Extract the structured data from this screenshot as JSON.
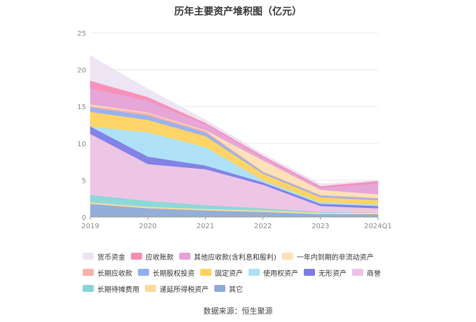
{
  "title": "历年主要资产堆积图（亿元）",
  "source": "数据来源：恒生聚源",
  "chart_data": {
    "type": "area",
    "stacked": true,
    "title": "历年主要资产堆积图（亿元）",
    "xlabel": "",
    "ylabel": "",
    "categories": [
      "2019",
      "2020",
      "2021",
      "2022",
      "2023",
      "2024Q1"
    ],
    "ylim": [
      0,
      25
    ],
    "yticks": [
      0,
      5,
      10,
      15,
      20,
      25
    ],
    "grid": true,
    "legend_position": "bottom",
    "series": [
      {
        "name": "其它",
        "color": "#8eaad8",
        "values": [
          1.8,
          1.2,
          0.9,
          0.7,
          0.4,
          0.4
        ]
      },
      {
        "name": "递延所得税资产",
        "color": "#fcd999",
        "values": [
          0.2,
          0.2,
          0.2,
          0.2,
          0.2,
          0.2
        ]
      },
      {
        "name": "长期待摊费用",
        "color": "#86d6d8",
        "values": [
          1.0,
          0.8,
          0.5,
          0.3,
          0.1,
          0.0
        ]
      },
      {
        "name": "商誉",
        "color": "#ecc3e4",
        "values": [
          8.3,
          5.0,
          4.9,
          3.2,
          0.8,
          0.6
        ]
      },
      {
        "name": "无形资产",
        "color": "#7b7be6",
        "values": [
          1.0,
          1.0,
          0.5,
          0.3,
          0.3,
          0.3
        ]
      },
      {
        "name": "使用权资产",
        "color": "#aadff8",
        "values": [
          0.0,
          3.3,
          2.5,
          0.3,
          0.2,
          0.2
        ]
      },
      {
        "name": "固定资产",
        "color": "#fdd25f",
        "values": [
          2.0,
          1.7,
          1.5,
          0.9,
          0.7,
          0.6
        ]
      },
      {
        "name": "长期股权投资",
        "color": "#93aef0",
        "values": [
          0.6,
          0.6,
          0.5,
          0.2,
          0.2,
          0.2
        ]
      },
      {
        "name": "长期应收款",
        "color": "#f9b1a6",
        "values": [
          0.2,
          0.3,
          0.2,
          0.1,
          0.1,
          0.1
        ]
      },
      {
        "name": "一年内到期的非流动资产",
        "color": "#fde0b5",
        "values": [
          0.2,
          0.1,
          0.1,
          1.5,
          0.7,
          0.5
        ]
      },
      {
        "name": "其他应收款(含利息和股利)",
        "color": "#e5a1d6",
        "values": [
          2.2,
          1.6,
          0.8,
          0.4,
          0.3,
          1.5
        ]
      },
      {
        "name": "应收账款",
        "color": "#f88bb4",
        "values": [
          1.0,
          0.5,
          0.2,
          0.2,
          0.2,
          0.3
        ]
      },
      {
        "name": "货币资金",
        "color": "#ece3f3",
        "values": [
          3.4,
          1.1,
          0.4,
          0.3,
          0.3,
          0.1
        ]
      }
    ],
    "legend_order": [
      "货币资金",
      "应收账款",
      "其他应收款(含利息和股利)",
      "一年内到期的非流动资产",
      "长期应收款",
      "长期股权投资",
      "固定资产",
      "使用权资产",
      "无形资产",
      "商誉",
      "长期待摊费用",
      "递延所得税资产",
      "其它"
    ]
  }
}
